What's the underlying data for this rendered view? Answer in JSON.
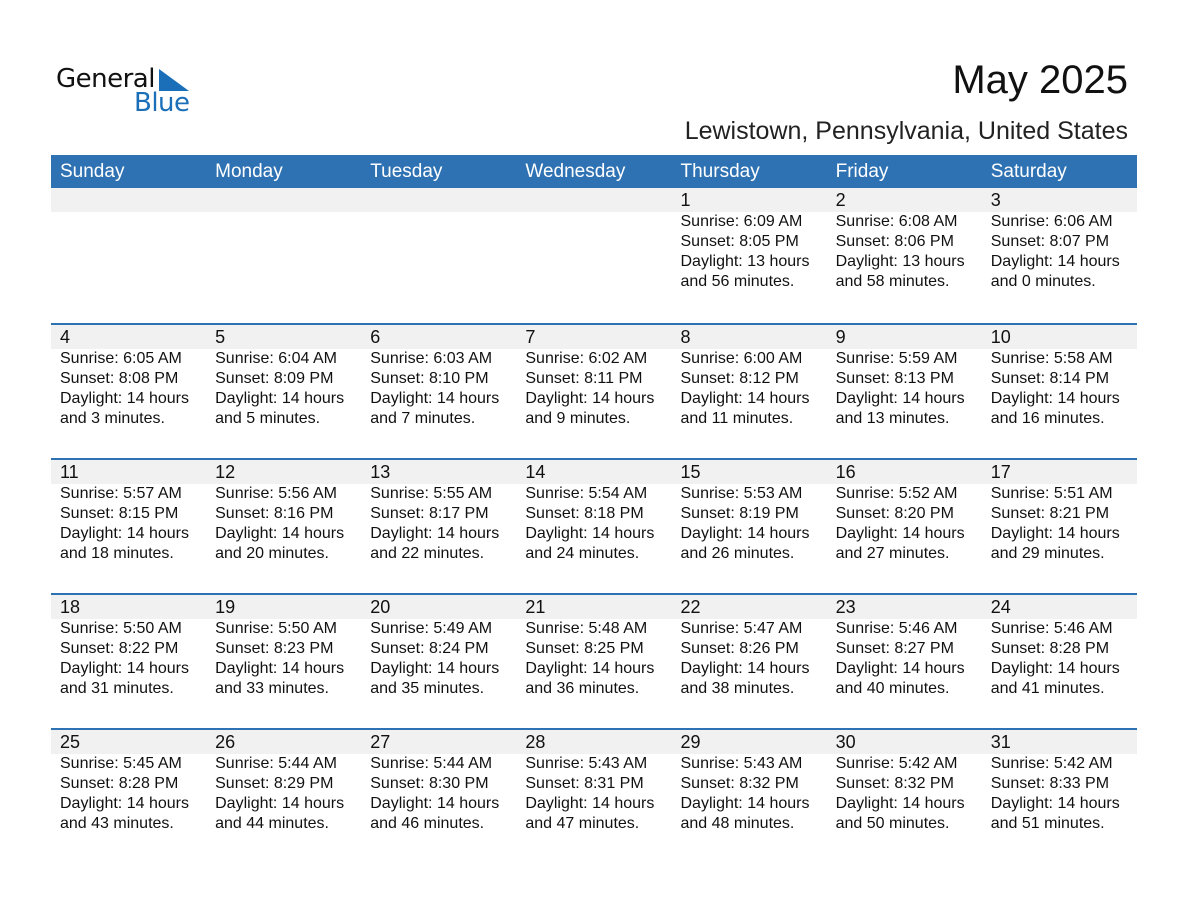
{
  "logo": {
    "line1": "General",
    "line2": "Blue",
    "color": "#1a6fb8"
  },
  "title": "May 2025",
  "subtitle": "Lewistown, Pennsylvania, United States",
  "accent": "#2e72b3",
  "weekdays": [
    "Sunday",
    "Monday",
    "Tuesday",
    "Wednesday",
    "Thursday",
    "Friday",
    "Saturday"
  ],
  "weeks": [
    [
      null,
      null,
      null,
      null,
      {
        "day": "1",
        "sunrise": "Sunrise: 6:09 AM",
        "sunset": "Sunset: 8:05 PM",
        "daylight": "Daylight: 13 hours",
        "minutes": "and 56 minutes."
      },
      {
        "day": "2",
        "sunrise": "Sunrise: 6:08 AM",
        "sunset": "Sunset: 8:06 PM",
        "daylight": "Daylight: 13 hours",
        "minutes": "and 58 minutes."
      },
      {
        "day": "3",
        "sunrise": "Sunrise: 6:06 AM",
        "sunset": "Sunset: 8:07 PM",
        "daylight": "Daylight: 14 hours",
        "minutes": "and 0 minutes."
      }
    ],
    [
      {
        "day": "4",
        "sunrise": "Sunrise: 6:05 AM",
        "sunset": "Sunset: 8:08 PM",
        "daylight": "Daylight: 14 hours",
        "minutes": "and 3 minutes."
      },
      {
        "day": "5",
        "sunrise": "Sunrise: 6:04 AM",
        "sunset": "Sunset: 8:09 PM",
        "daylight": "Daylight: 14 hours",
        "minutes": "and 5 minutes."
      },
      {
        "day": "6",
        "sunrise": "Sunrise: 6:03 AM",
        "sunset": "Sunset: 8:10 PM",
        "daylight": "Daylight: 14 hours",
        "minutes": "and 7 minutes."
      },
      {
        "day": "7",
        "sunrise": "Sunrise: 6:02 AM",
        "sunset": "Sunset: 8:11 PM",
        "daylight": "Daylight: 14 hours",
        "minutes": "and 9 minutes."
      },
      {
        "day": "8",
        "sunrise": "Sunrise: 6:00 AM",
        "sunset": "Sunset: 8:12 PM",
        "daylight": "Daylight: 14 hours",
        "minutes": "and 11 minutes."
      },
      {
        "day": "9",
        "sunrise": "Sunrise: 5:59 AM",
        "sunset": "Sunset: 8:13 PM",
        "daylight": "Daylight: 14 hours",
        "minutes": "and 13 minutes."
      },
      {
        "day": "10",
        "sunrise": "Sunrise: 5:58 AM",
        "sunset": "Sunset: 8:14 PM",
        "daylight": "Daylight: 14 hours",
        "minutes": "and 16 minutes."
      }
    ],
    [
      {
        "day": "11",
        "sunrise": "Sunrise: 5:57 AM",
        "sunset": "Sunset: 8:15 PM",
        "daylight": "Daylight: 14 hours",
        "minutes": "and 18 minutes."
      },
      {
        "day": "12",
        "sunrise": "Sunrise: 5:56 AM",
        "sunset": "Sunset: 8:16 PM",
        "daylight": "Daylight: 14 hours",
        "minutes": "and 20 minutes."
      },
      {
        "day": "13",
        "sunrise": "Sunrise: 5:55 AM",
        "sunset": "Sunset: 8:17 PM",
        "daylight": "Daylight: 14 hours",
        "minutes": "and 22 minutes."
      },
      {
        "day": "14",
        "sunrise": "Sunrise: 5:54 AM",
        "sunset": "Sunset: 8:18 PM",
        "daylight": "Daylight: 14 hours",
        "minutes": "and 24 minutes."
      },
      {
        "day": "15",
        "sunrise": "Sunrise: 5:53 AM",
        "sunset": "Sunset: 8:19 PM",
        "daylight": "Daylight: 14 hours",
        "minutes": "and 26 minutes."
      },
      {
        "day": "16",
        "sunrise": "Sunrise: 5:52 AM",
        "sunset": "Sunset: 8:20 PM",
        "daylight": "Daylight: 14 hours",
        "minutes": "and 27 minutes."
      },
      {
        "day": "17",
        "sunrise": "Sunrise: 5:51 AM",
        "sunset": "Sunset: 8:21 PM",
        "daylight": "Daylight: 14 hours",
        "minutes": "and 29 minutes."
      }
    ],
    [
      {
        "day": "18",
        "sunrise": "Sunrise: 5:50 AM",
        "sunset": "Sunset: 8:22 PM",
        "daylight": "Daylight: 14 hours",
        "minutes": "and 31 minutes."
      },
      {
        "day": "19",
        "sunrise": "Sunrise: 5:50 AM",
        "sunset": "Sunset: 8:23 PM",
        "daylight": "Daylight: 14 hours",
        "minutes": "and 33 minutes."
      },
      {
        "day": "20",
        "sunrise": "Sunrise: 5:49 AM",
        "sunset": "Sunset: 8:24 PM",
        "daylight": "Daylight: 14 hours",
        "minutes": "and 35 minutes."
      },
      {
        "day": "21",
        "sunrise": "Sunrise: 5:48 AM",
        "sunset": "Sunset: 8:25 PM",
        "daylight": "Daylight: 14 hours",
        "minutes": "and 36 minutes."
      },
      {
        "day": "22",
        "sunrise": "Sunrise: 5:47 AM",
        "sunset": "Sunset: 8:26 PM",
        "daylight": "Daylight: 14 hours",
        "minutes": "and 38 minutes."
      },
      {
        "day": "23",
        "sunrise": "Sunrise: 5:46 AM",
        "sunset": "Sunset: 8:27 PM",
        "daylight": "Daylight: 14 hours",
        "minutes": "and 40 minutes."
      },
      {
        "day": "24",
        "sunrise": "Sunrise: 5:46 AM",
        "sunset": "Sunset: 8:28 PM",
        "daylight": "Daylight: 14 hours",
        "minutes": "and 41 minutes."
      }
    ],
    [
      {
        "day": "25",
        "sunrise": "Sunrise: 5:45 AM",
        "sunset": "Sunset: 8:28 PM",
        "daylight": "Daylight: 14 hours",
        "minutes": "and 43 minutes."
      },
      {
        "day": "26",
        "sunrise": "Sunrise: 5:44 AM",
        "sunset": "Sunset: 8:29 PM",
        "daylight": "Daylight: 14 hours",
        "minutes": "and 44 minutes."
      },
      {
        "day": "27",
        "sunrise": "Sunrise: 5:44 AM",
        "sunset": "Sunset: 8:30 PM",
        "daylight": "Daylight: 14 hours",
        "minutes": "and 46 minutes."
      },
      {
        "day": "28",
        "sunrise": "Sunrise: 5:43 AM",
        "sunset": "Sunset: 8:31 PM",
        "daylight": "Daylight: 14 hours",
        "minutes": "and 47 minutes."
      },
      {
        "day": "29",
        "sunrise": "Sunrise: 5:43 AM",
        "sunset": "Sunset: 8:32 PM",
        "daylight": "Daylight: 14 hours",
        "minutes": "and 48 minutes."
      },
      {
        "day": "30",
        "sunrise": "Sunrise: 5:42 AM",
        "sunset": "Sunset: 8:32 PM",
        "daylight": "Daylight: 14 hours",
        "minutes": "and 50 minutes."
      },
      {
        "day": "31",
        "sunrise": "Sunrise: 5:42 AM",
        "sunset": "Sunset: 8:33 PM",
        "daylight": "Daylight: 14 hours",
        "minutes": "and 51 minutes."
      }
    ]
  ]
}
